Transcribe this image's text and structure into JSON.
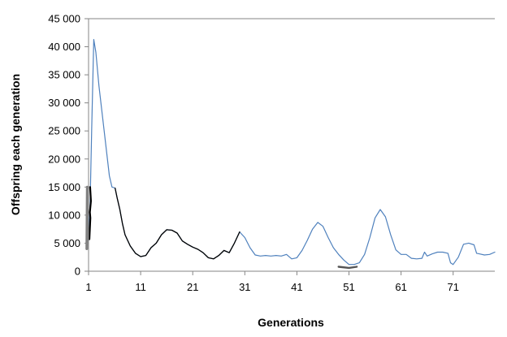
{
  "chart_data": {
    "type": "line",
    "title": "",
    "xlabel": "Generations",
    "ylabel": "Offspring each generation",
    "xlim": [
      1,
      79
    ],
    "ylim": [
      0,
      45000
    ],
    "grid": {
      "x": false,
      "y": false
    },
    "x_ticks": [
      "1",
      "11",
      "21",
      "31",
      "41",
      "51",
      "61",
      "71"
    ],
    "y_ticks": [
      "0",
      "5 000",
      "10 000",
      "15 000",
      "20 000",
      "25 000",
      "30 000",
      "35 000",
      "40 000",
      "45 000"
    ],
    "series": [
      {
        "color": "#4F81BD",
        "points": [
          [
            1.0,
            5500
          ],
          [
            1.3,
            12000
          ],
          [
            1.6,
            25000
          ],
          [
            2.0,
            41300
          ],
          [
            2.4,
            39000
          ],
          [
            3.0,
            33000
          ],
          [
            4.0,
            25000
          ],
          [
            5.0,
            17000
          ],
          [
            5.5,
            15000
          ],
          [
            6.1,
            14800
          ],
          [
            6.5,
            13000
          ],
          [
            7.0,
            11000
          ],
          [
            7.5,
            8500
          ],
          [
            8.0,
            6500
          ],
          [
            9.0,
            4500
          ],
          [
            10.0,
            3200
          ],
          [
            11.0,
            2600
          ],
          [
            12.0,
            2800
          ],
          [
            13.0,
            4200
          ],
          [
            14.0,
            5000
          ],
          [
            15.0,
            6500
          ],
          [
            16.0,
            7400
          ],
          [
            17.0,
            7300
          ],
          [
            18.0,
            6800
          ],
          [
            19.0,
            5400
          ],
          [
            20.0,
            4800
          ],
          [
            21.0,
            4300
          ],
          [
            22.0,
            3900
          ],
          [
            23.0,
            3300
          ],
          [
            24.0,
            2400
          ],
          [
            25.0,
            2200
          ],
          [
            26.0,
            2800
          ],
          [
            27.0,
            3700
          ],
          [
            28.0,
            3300
          ],
          [
            29.0,
            5000
          ],
          [
            30.0,
            7000
          ],
          [
            31.0,
            6000
          ],
          [
            32.0,
            4200
          ],
          [
            33.0,
            2900
          ],
          [
            34.0,
            2700
          ],
          [
            35.0,
            2800
          ],
          [
            36.0,
            2700
          ],
          [
            37.0,
            2800
          ],
          [
            38.0,
            2700
          ],
          [
            39.0,
            3000
          ],
          [
            40.0,
            2200
          ],
          [
            41.0,
            2400
          ],
          [
            42.0,
            3700
          ],
          [
            43.0,
            5500
          ],
          [
            44.0,
            7500
          ],
          [
            45.0,
            8700
          ],
          [
            46.0,
            8000
          ],
          [
            47.0,
            6000
          ],
          [
            48.0,
            4200
          ],
          [
            49.0,
            3000
          ],
          [
            50.0,
            2000
          ],
          [
            51.0,
            1200
          ],
          [
            52.0,
            1200
          ],
          [
            53.0,
            1500
          ],
          [
            54.0,
            3000
          ],
          [
            55.0,
            6000
          ],
          [
            56.0,
            9500
          ],
          [
            57.0,
            11000
          ],
          [
            58.0,
            9700
          ],
          [
            59.0,
            6500
          ],
          [
            60.0,
            3800
          ],
          [
            61.0,
            3000
          ],
          [
            62.0,
            3000
          ],
          [
            63.0,
            2300
          ],
          [
            64.0,
            2200
          ],
          [
            65.0,
            2300
          ],
          [
            65.5,
            3400
          ],
          [
            66.0,
            2700
          ],
          [
            67.0,
            3100
          ],
          [
            68.0,
            3400
          ],
          [
            69.0,
            3400
          ],
          [
            70.0,
            3200
          ],
          [
            70.5,
            1500
          ],
          [
            71.0,
            1200
          ],
          [
            72.0,
            2500
          ],
          [
            73.0,
            4800
          ],
          [
            74.0,
            5000
          ],
          [
            75.0,
            4700
          ],
          [
            75.5,
            3200
          ],
          [
            76.0,
            3100
          ],
          [
            77.0,
            2900
          ],
          [
            78.0,
            3000
          ],
          [
            79.0,
            3400
          ]
        ]
      },
      {
        "color": "#000000",
        "points": [
          [
            6.1,
            14800
          ],
          [
            6.5,
            13000
          ],
          [
            7.0,
            11000
          ],
          [
            7.5,
            8500
          ],
          [
            8.0,
            6500
          ],
          [
            9.0,
            4500
          ],
          [
            10.0,
            3200
          ],
          [
            11.0,
            2600
          ],
          [
            12.0,
            2800
          ],
          [
            13.0,
            4200
          ],
          [
            14.0,
            5000
          ],
          [
            15.0,
            6500
          ],
          [
            16.0,
            7400
          ],
          [
            17.0,
            7300
          ],
          [
            18.0,
            6800
          ],
          [
            19.0,
            5400
          ],
          [
            20.0,
            4800
          ],
          [
            21.0,
            4300
          ],
          [
            22.0,
            3900
          ],
          [
            23.0,
            3300
          ],
          [
            24.0,
            2400
          ],
          [
            25.0,
            2200
          ],
          [
            26.0,
            2800
          ],
          [
            27.0,
            3700
          ],
          [
            28.0,
            3300
          ],
          [
            29.0,
            5000
          ],
          [
            30.0,
            7000
          ]
        ]
      },
      {
        "color": "#000000",
        "points": [
          [
            1.15,
            5700
          ],
          [
            1.35,
            9500
          ],
          [
            1.25,
            10500
          ],
          [
            1.45,
            12500
          ],
          [
            1.3,
            15000
          ]
        ]
      },
      {
        "color": "#808080",
        "points": [
          [
            0.65,
            4000
          ],
          [
            0.75,
            15000
          ]
        ]
      },
      {
        "color": "#555555",
        "points": [
          [
            49.0,
            800
          ],
          [
            51.0,
            600
          ],
          [
            52.5,
            800
          ]
        ]
      }
    ]
  }
}
